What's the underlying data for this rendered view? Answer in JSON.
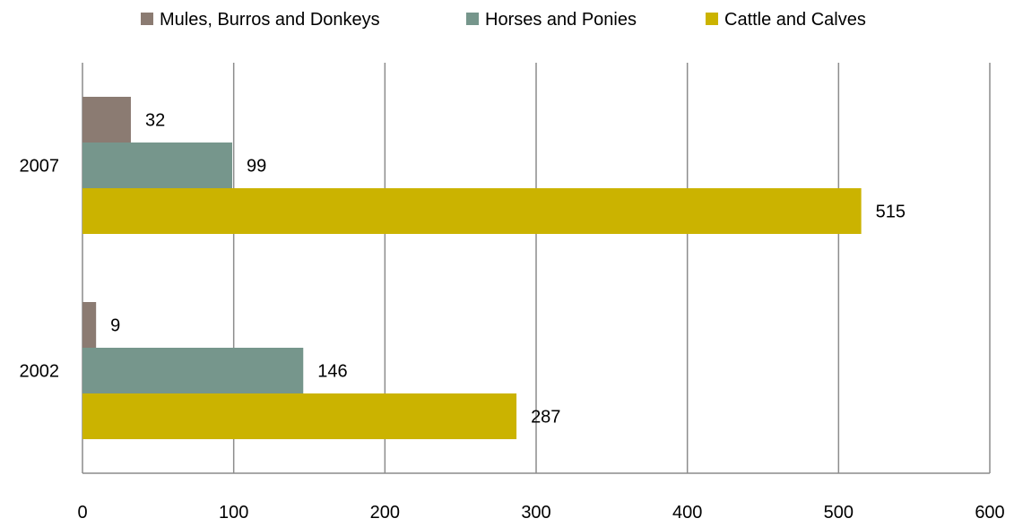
{
  "chart_data": {
    "type": "bar",
    "orientation": "horizontal",
    "categories": [
      "2002",
      "2007"
    ],
    "series": [
      {
        "name": "Mules, Burros and Donkeys",
        "values": [
          9,
          32
        ],
        "color": "#8b7b72"
      },
      {
        "name": "Horses and Ponies",
        "values": [
          146,
          99
        ],
        "color": "#76968c"
      },
      {
        "name": "Cattle and Calves",
        "values": [
          287,
          515
        ],
        "color": "#cbb300"
      }
    ],
    "xlim": [
      0,
      600
    ],
    "xticks": [
      "0",
      "100",
      "200",
      "300",
      "400",
      "500",
      "600"
    ],
    "grid": "vertical",
    "legend_position": "top",
    "data_labels": true
  }
}
